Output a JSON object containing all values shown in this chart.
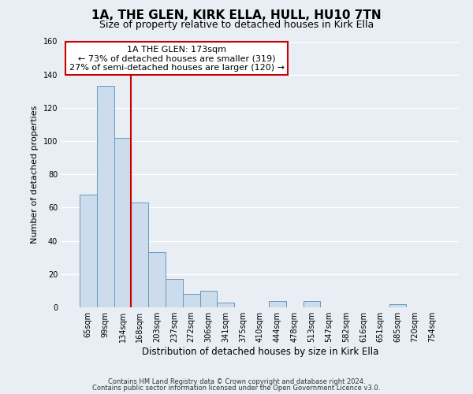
{
  "title": "1A, THE GLEN, KIRK ELLA, HULL, HU10 7TN",
  "subtitle": "Size of property relative to detached houses in Kirk Ella",
  "xlabel": "Distribution of detached houses by size in Kirk Ella",
  "ylabel": "Number of detached properties",
  "bar_labels": [
    "65sqm",
    "99sqm",
    "134sqm",
    "168sqm",
    "203sqm",
    "237sqm",
    "272sqm",
    "306sqm",
    "341sqm",
    "375sqm",
    "410sqm",
    "444sqm",
    "478sqm",
    "513sqm",
    "547sqm",
    "582sqm",
    "616sqm",
    "651sqm",
    "685sqm",
    "720sqm",
    "754sqm"
  ],
  "bar_values": [
    68,
    133,
    102,
    63,
    33,
    17,
    8,
    10,
    3,
    0,
    0,
    4,
    0,
    4,
    0,
    0,
    0,
    0,
    2,
    0,
    0
  ],
  "bar_color": "#ccdcec",
  "bar_edge_color": "#6699bb",
  "vline_color": "#cc0000",
  "annotation_line1": "1A THE GLEN: 173sqm",
  "annotation_line2": "← 73% of detached houses are smaller (319)",
  "annotation_line3": "27% of semi-detached houses are larger (120) →",
  "annotation_box_color": "#ffffff",
  "annotation_box_edge_color": "#cc0000",
  "ylim": [
    0,
    160
  ],
  "yticks": [
    0,
    20,
    40,
    60,
    80,
    100,
    120,
    140,
    160
  ],
  "footer_line1": "Contains HM Land Registry data © Crown copyright and database right 2024.",
  "footer_line2": "Contains public sector information licensed under the Open Government Licence v3.0.",
  "background_color": "#e8eef4",
  "plot_bg_color": "#e8eef4",
  "grid_color": "#ffffff",
  "title_fontsize": 11,
  "subtitle_fontsize": 9,
  "annotation_fontsize": 8,
  "ylabel_fontsize": 8,
  "xlabel_fontsize": 8.5,
  "tick_fontsize": 7,
  "footer_fontsize": 6
}
